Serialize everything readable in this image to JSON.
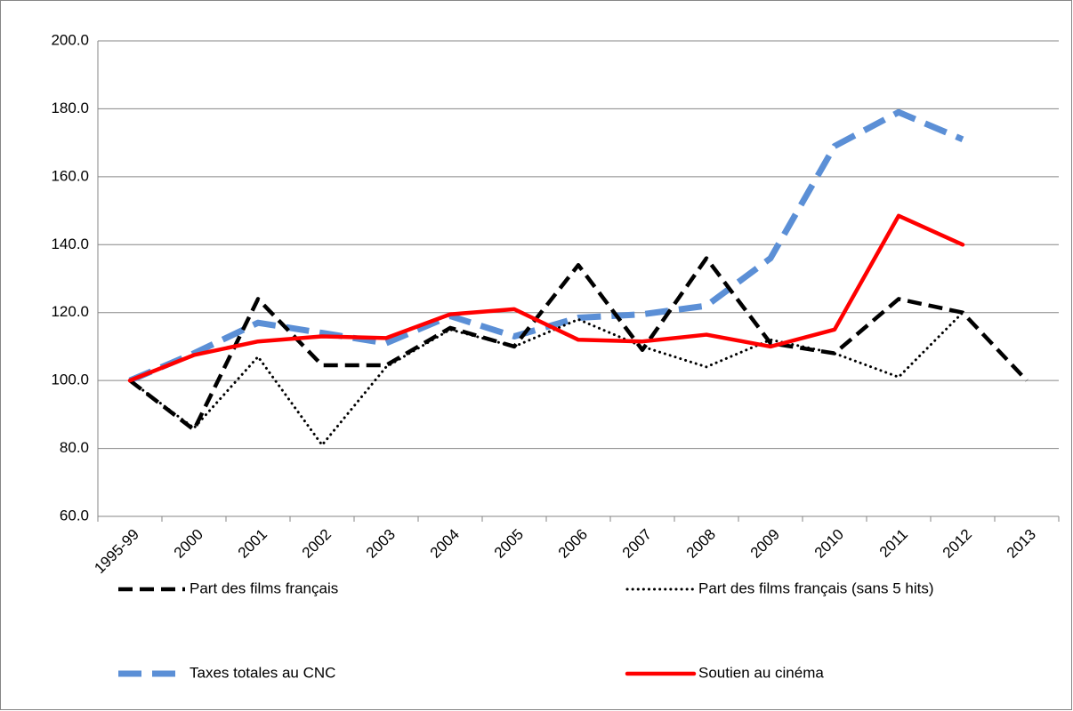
{
  "chart_data": {
    "type": "line",
    "categories": [
      "1995-99",
      "2000",
      "2001",
      "2002",
      "2003",
      "2004",
      "2005",
      "2006",
      "2007",
      "2008",
      "2009",
      "2010",
      "2011",
      "2012",
      "2013"
    ],
    "series": [
      {
        "name": "Part des films français",
        "color": "#000000",
        "style": "dashed",
        "values": [
          100,
          85.5,
          124,
          104.5,
          104.5,
          115.5,
          110,
          134,
          109,
          136,
          111,
          108,
          124,
          120,
          100
        ]
      },
      {
        "name": "Part des films français (sans 5 hits)",
        "color": "#000000",
        "style": "dotted",
        "values": [
          100,
          86,
          107,
          81,
          104,
          115,
          110,
          118,
          110,
          104,
          112,
          108,
          101,
          120,
          null
        ]
      },
      {
        "name": "Taxes totales au CNC",
        "color": "#5b8fd6",
        "style": "longdash",
        "values": [
          100,
          108,
          117,
          114,
          111,
          119,
          113,
          118.5,
          119.5,
          122,
          136,
          169,
          179,
          171,
          null
        ]
      },
      {
        "name": "Soutien au cinéma",
        "color": "#ff0000",
        "style": "solid",
        "values": [
          100,
          107.5,
          111.5,
          113,
          112.5,
          119.5,
          121,
          112,
          111.5,
          113.5,
          110,
          115,
          148.5,
          140,
          null
        ]
      }
    ],
    "ylim": [
      60,
      200
    ],
    "yticks": [
      {
        "value": 60,
        "label": "60.0"
      },
      {
        "value": 80,
        "label": "80.0"
      },
      {
        "value": 100,
        "label": "100.0"
      },
      {
        "value": 120,
        "label": "120.0"
      },
      {
        "value": 140,
        "label": "140.0"
      },
      {
        "value": 160,
        "label": "160.0"
      },
      {
        "value": 180,
        "label": "180.0"
      },
      {
        "value": 200,
        "label": "200.0"
      }
    ],
    "grid": true,
    "legend": "bottom"
  }
}
